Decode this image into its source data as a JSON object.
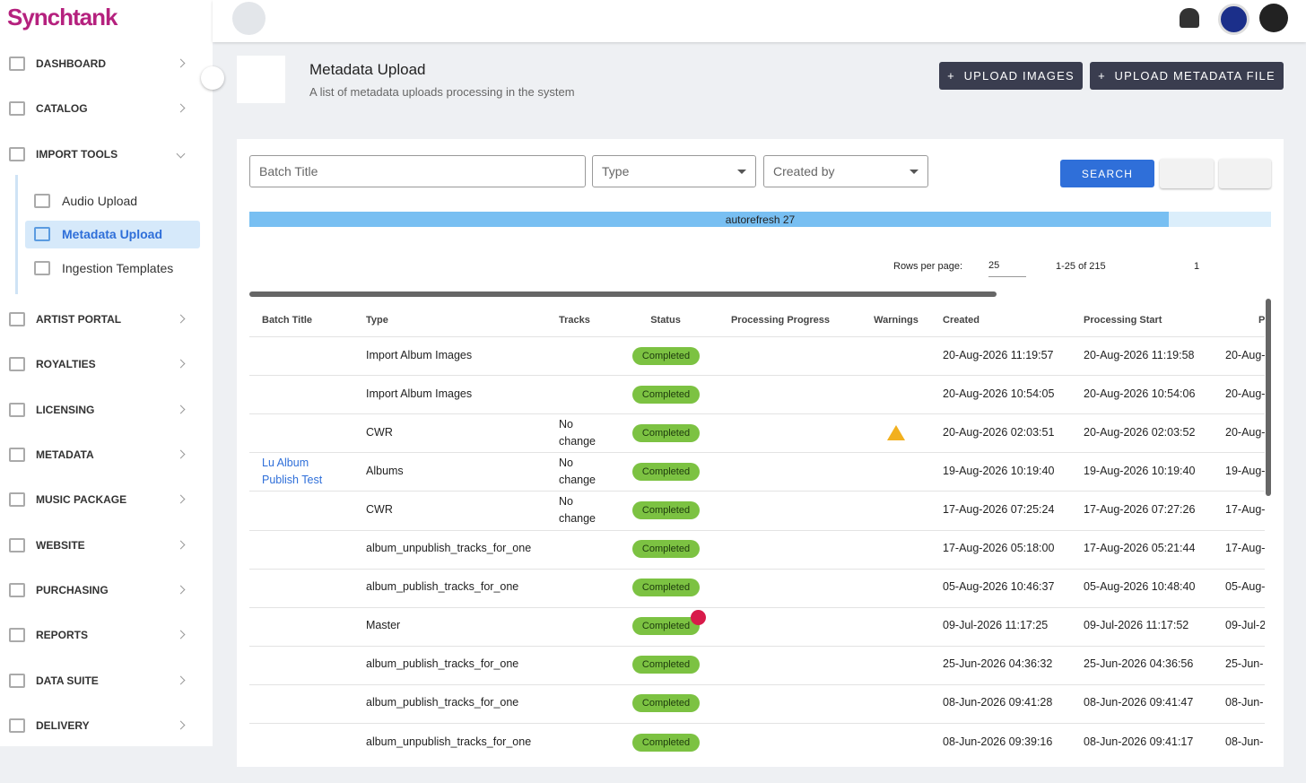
{
  "logo": "Synchtank",
  "sidebar": {
    "items": [
      {
        "label": "DASHBOARD"
      },
      {
        "label": "CATALOG"
      },
      {
        "label": "IMPORT TOOLS",
        "children": [
          "Audio Upload",
          "Metadata Upload",
          "Ingestion Templates"
        ]
      },
      {
        "label": "ARTIST PORTAL"
      },
      {
        "label": "ROYALTIES"
      },
      {
        "label": "LICENSING"
      },
      {
        "label": "METADATA"
      },
      {
        "label": "MUSIC PACKAGE"
      },
      {
        "label": "WEBSITE"
      },
      {
        "label": "PURCHASING"
      },
      {
        "label": "REPORTS"
      },
      {
        "label": "DATA SUITE"
      },
      {
        "label": "DELIVERY"
      }
    ],
    "active_child": "Metadata Upload"
  },
  "header": {
    "title": "Metadata Upload",
    "subtitle": "A list of metadata uploads processing in the system",
    "buttons": [
      "UPLOAD IMAGES",
      "UPLOAD METADATA FILE"
    ]
  },
  "filters": {
    "batch_title": "Batch Title",
    "type": "Type",
    "created_by": "Created by",
    "search": "SEARCH"
  },
  "autorefresh": "autorefresh 27",
  "pagination": {
    "rows_per_page_label": "Rows per page:",
    "rows_per_page": "25",
    "range": "1-25 of 215",
    "page": "1"
  },
  "table": {
    "columns": {
      "batch_title": "Batch Title",
      "type": "Type",
      "tracks": "Tracks",
      "status": "Status",
      "progress": "Processing Progress",
      "warnings": "Warnings",
      "created": "Created",
      "start": "Processing Start",
      "end": "P"
    },
    "rows": [
      {
        "type": "Import Album Images",
        "status": "Completed",
        "created": "20-Aug-2026 11:19:57",
        "start": "20-Aug-2026 11:19:58",
        "end": "20-Aug-"
      },
      {
        "type": "Import Album Images",
        "status": "Completed",
        "created": "20-Aug-2026 10:54:05",
        "start": "20-Aug-2026 10:54:06",
        "end": "20-Aug-"
      },
      {
        "type": "CWR",
        "tracks": "No change",
        "status": "Completed",
        "warning": true,
        "created": "20-Aug-2026 02:03:51",
        "start": "20-Aug-2026 02:03:52",
        "end": "20-Aug-"
      },
      {
        "batch_title": "Lu Album Publish Test",
        "type": "Albums",
        "tracks": "No change",
        "status": "Completed",
        "created": "19-Aug-2026 10:19:40",
        "start": "19-Aug-2026 10:19:40",
        "end": "19-Aug-"
      },
      {
        "type": "CWR",
        "tracks": "No change",
        "status": "Completed",
        "created": "17-Aug-2026 07:25:24",
        "start": "17-Aug-2026 07:27:26",
        "end": "17-Aug-"
      },
      {
        "type": "album_unpublish_tracks_for_one",
        "status": "Completed",
        "created": "17-Aug-2026 05:18:00",
        "start": "17-Aug-2026 05:21:44",
        "end": "17-Aug-"
      },
      {
        "type": "album_publish_tracks_for_one",
        "status": "Completed",
        "created": "05-Aug-2026 10:46:37",
        "start": "05-Aug-2026 10:48:40",
        "end": "05-Aug-"
      },
      {
        "type": "Master",
        "status": "Completed",
        "error": true,
        "created": "09-Jul-2026 11:17:25",
        "start": "09-Jul-2026 11:17:52",
        "end": "09-Jul-2"
      },
      {
        "type": "album_publish_tracks_for_one",
        "status": "Completed",
        "created": "25-Jun-2026 04:36:32",
        "start": "25-Jun-2026 04:36:56",
        "end": "25-Jun-"
      },
      {
        "type": "album_publish_tracks_for_one",
        "status": "Completed",
        "created": "08-Jun-2026 09:41:28",
        "start": "08-Jun-2026 09:41:47",
        "end": "08-Jun-"
      },
      {
        "type": "album_unpublish_tracks_for_one",
        "status": "Completed",
        "created": "08-Jun-2026 09:39:16",
        "start": "08-Jun-2026 09:41:17",
        "end": "08-Jun-"
      }
    ]
  }
}
